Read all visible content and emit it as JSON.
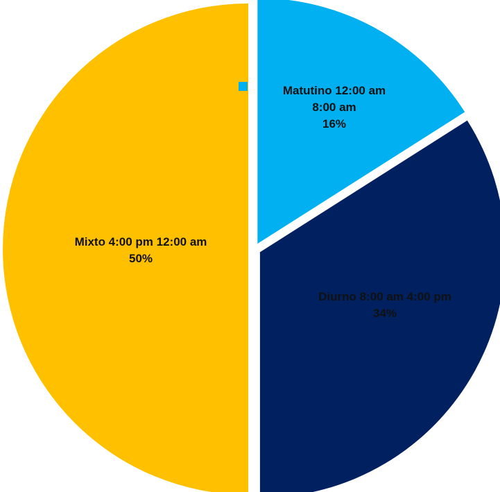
{
  "chart_data": {
    "type": "pie",
    "categories": [
      "Matutino 12:00 am 8:00 am",
      "Diurno 8:00 am 4:00 pm",
      "Mixto 4:00 pm 12:00 am"
    ],
    "values": [
      16,
      34,
      50
    ],
    "labels": [
      {
        "lines": [
          "Matutino 12:00 am",
          "8:00 am"
        ],
        "percent": "16%"
      },
      {
        "lines": [
          "Diurno 8:00 am 4:00 pm"
        ],
        "percent": "34%"
      },
      {
        "lines": [
          "Mixto 4:00 pm 12:00 am"
        ],
        "percent": "50%"
      }
    ],
    "colors": [
      "#00B0F0",
      "#002060",
      "#FFC000"
    ],
    "label_colors": [
      "#111111",
      "#ffffff",
      "#111111"
    ],
    "exploded": true,
    "legend": "none"
  }
}
